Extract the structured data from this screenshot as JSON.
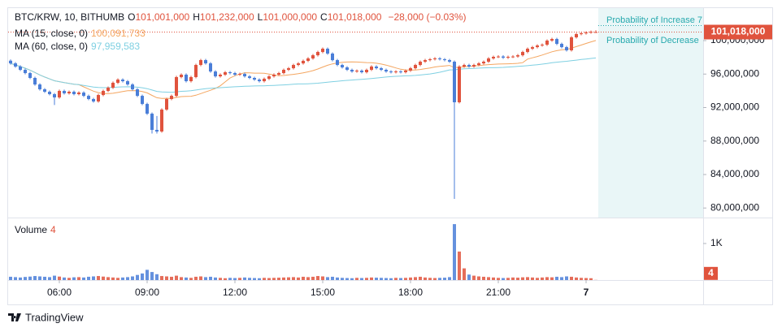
{
  "chart_data": {
    "type": "candlestick",
    "symbol": "BTC/KRW, 10, BITHUMB",
    "ohlc_legend": [
      {
        "key": "O",
        "label": "101,001,000"
      },
      {
        "key": "H",
        "label": "101,232,000"
      },
      {
        "key": "L",
        "label": "101,000,000"
      },
      {
        "key": "C",
        "label": "101,018,000"
      }
    ],
    "change_label": "−28,000 (−0.03%)",
    "up_color": "#e0533d",
    "down_color": "#4a7ed8",
    "open": [
      97600000,
      97280000,
      96900000,
      96510000,
      96120000,
      95540000,
      94760000,
      94180000,
      93890000,
      93600000,
      93210000,
      93990000,
      93700000,
      93890000,
      93600000,
      93790000,
      93400000,
      93020000,
      92730000,
      93500000,
      93990000,
      94370000,
      94960000,
      95340000,
      95150000,
      94760000,
      94180000,
      93400000,
      92430000,
      91270000,
      89330000,
      89140000,
      91760000,
      93020000,
      93400000,
      95640000,
      95930000,
      95150000,
      95640000,
      97090000,
      97670000,
      97280000,
      96310000,
      95730000,
      95930000,
      96220000,
      96120000,
      95930000,
      96020000,
      95730000,
      95540000,
      95340000,
      95150000,
      95440000,
      95730000,
      95930000,
      96120000,
      96510000,
      96700000,
      97090000,
      97280000,
      97580000,
      97870000,
      98250000,
      98640000,
      99030000,
      98450000,
      97670000,
      97090000,
      96800000,
      96510000,
      96310000,
      96410000,
      96220000,
      96510000,
      96900000,
      96700000,
      96510000,
      96310000,
      96220000,
      96310000,
      96220000,
      96410000,
      96700000,
      97090000,
      97480000,
      97670000,
      97770000,
      97870000,
      97770000,
      97670000,
      97480000,
      92630000,
      96900000,
      97090000,
      96900000,
      97090000,
      97280000,
      97480000,
      97870000,
      98060000,
      98100000,
      97960000,
      98060000,
      98100000,
      98250000,
      98640000,
      99030000,
      99220000,
      99420000,
      99510000,
      100000000,
      100190000,
      99610000,
      99220000,
      98840000,
      100390000,
      100780000,
      100870000,
      100970000,
      101001000
    ],
    "high": [
      97750000,
      97430000,
      97050000,
      96660000,
      96270000,
      95690000,
      94910000,
      94330000,
      94040000,
      93750000,
      94140000,
      94140000,
      94040000,
      94040000,
      93940000,
      93940000,
      93550000,
      93170000,
      93650000,
      94140000,
      94520000,
      95110000,
      95490000,
      95490000,
      95300000,
      94910000,
      94330000,
      93550000,
      92580000,
      91420000,
      91000000,
      91910000,
      93170000,
      93550000,
      95790000,
      96080000,
      96080000,
      95790000,
      97240000,
      97820000,
      97820000,
      97430000,
      96460000,
      96080000,
      96370000,
      96370000,
      96270000,
      96170000,
      96170000,
      95880000,
      95690000,
      95490000,
      95590000,
      95880000,
      96080000,
      96270000,
      96660000,
      96850000,
      97240000,
      97430000,
      97730000,
      98020000,
      98400000,
      98790000,
      99180000,
      99180000,
      98600000,
      97820000,
      97240000,
      96950000,
      96660000,
      96560000,
      96560000,
      96660000,
      97050000,
      97050000,
      96850000,
      96660000,
      96460000,
      96460000,
      96460000,
      96560000,
      96850000,
      97240000,
      97630000,
      97820000,
      97920000,
      98020000,
      98020000,
      97920000,
      97820000,
      97630000,
      97050000,
      97240000,
      97240000,
      97240000,
      97430000,
      97630000,
      98020000,
      98210000,
      98250000,
      98250000,
      98210000,
      98250000,
      98400000,
      98790000,
      99180000,
      99370000,
      99570000,
      99660000,
      100150000,
      100340000,
      100340000,
      99760000,
      99370000,
      100540000,
      100930000,
      101020000,
      101120000,
      101200000,
      101232000
    ],
    "low": [
      97130000,
      96750000,
      96360000,
      95970000,
      95390000,
      94610000,
      94030000,
      93740000,
      93450000,
      92300000,
      93060000,
      93550000,
      93550000,
      93450000,
      93450000,
      93250000,
      92870000,
      92580000,
      92580000,
      93350000,
      93840000,
      94220000,
      94810000,
      95000000,
      94610000,
      94030000,
      93250000,
      92280000,
      91120000,
      88900000,
      88900000,
      88990000,
      91610000,
      92870000,
      93250000,
      95490000,
      95000000,
      95000000,
      95490000,
      96940000,
      97130000,
      96160000,
      95580000,
      95580000,
      95780000,
      95970000,
      95780000,
      95780000,
      95580000,
      95390000,
      95190000,
      95000000,
      95000000,
      95290000,
      95580000,
      95780000,
      95970000,
      96360000,
      96550000,
      96940000,
      97130000,
      97430000,
      97720000,
      98100000,
      98490000,
      98300000,
      97520000,
      96940000,
      96650000,
      96360000,
      96160000,
      96160000,
      96070000,
      96070000,
      96360000,
      96550000,
      96360000,
      96160000,
      96070000,
      96070000,
      96070000,
      96070000,
      96260000,
      96550000,
      96940000,
      97330000,
      97520000,
      97620000,
      97620000,
      97520000,
      97330000,
      81090000,
      92480000,
      96750000,
      96750000,
      96750000,
      96940000,
      97130000,
      97330000,
      97720000,
      97910000,
      97810000,
      97810000,
      97910000,
      97950000,
      98100000,
      98490000,
      98880000,
      99070000,
      99270000,
      99360000,
      99850000,
      99460000,
      99070000,
      98690000,
      98690000,
      100240000,
      100630000,
      100720000,
      100820000,
      101000000
    ],
    "close": [
      97280000,
      96900000,
      96510000,
      96120000,
      95540000,
      94760000,
      94180000,
      93890000,
      93600000,
      93210000,
      93990000,
      93700000,
      93890000,
      93600000,
      93790000,
      93400000,
      93020000,
      92730000,
      93500000,
      93990000,
      94370000,
      94960000,
      95340000,
      95150000,
      94760000,
      94180000,
      93400000,
      92430000,
      91270000,
      89330000,
      89140000,
      91760000,
      93020000,
      93400000,
      95640000,
      95930000,
      95150000,
      95640000,
      97090000,
      97670000,
      97280000,
      96310000,
      95730000,
      95930000,
      96220000,
      96120000,
      95930000,
      96020000,
      95730000,
      95540000,
      95340000,
      95150000,
      95440000,
      95730000,
      95930000,
      96120000,
      96510000,
      96700000,
      97090000,
      97280000,
      97580000,
      97870000,
      98250000,
      98640000,
      99030000,
      98450000,
      97670000,
      97090000,
      96800000,
      96510000,
      96310000,
      96410000,
      96220000,
      96510000,
      96900000,
      96700000,
      96510000,
      96310000,
      96220000,
      96310000,
      96220000,
      96410000,
      96700000,
      97090000,
      97480000,
      97670000,
      97770000,
      97870000,
      97770000,
      97670000,
      97480000,
      92630000,
      96900000,
      97090000,
      96900000,
      97090000,
      97280000,
      97480000,
      97870000,
      98060000,
      98100000,
      97960000,
      98060000,
      98100000,
      98250000,
      98640000,
      99030000,
      99220000,
      99420000,
      99510000,
      100000000,
      100190000,
      99610000,
      99220000,
      98840000,
      100390000,
      100780000,
      100870000,
      100970000,
      101046000,
      101018000
    ],
    "xlim": [
      -0.5,
      142
    ],
    "xticks": [
      {
        "value": 10,
        "label": "06:00"
      },
      {
        "value": 28,
        "label": "09:00"
      },
      {
        "value": 46,
        "label": "12:00"
      },
      {
        "value": 64,
        "label": "15:00"
      },
      {
        "value": 82,
        "label": "18:00"
      },
      {
        "value": 100,
        "label": "21:00"
      },
      {
        "value": 118,
        "label": "7"
      }
    ],
    "ylim": [
      78860000,
      103880000
    ],
    "yticks": [
      {
        "value": 100000000,
        "label": "100,000,000"
      },
      {
        "value": 96000000,
        "label": "96,000,000"
      },
      {
        "value": 92000000,
        "label": "92,000,000"
      },
      {
        "value": 88000000,
        "label": "88,000,000"
      },
      {
        "value": 84000000,
        "label": "84,000,000"
      },
      {
        "value": 80000000,
        "label": "80,000,000"
      }
    ],
    "last_price_label": "101,018,000",
    "indicators": [
      {
        "name": "MA (15, close, 0)",
        "period": 15,
        "color": "#f4a660",
        "value_label": "100,091,733"
      },
      {
        "name": "MA (60, close, 0)",
        "period": 60,
        "color": "#7fd0e2",
        "value_label": "97,959,583"
      }
    ],
    "volume": {
      "title": "Volume",
      "value_label": "4",
      "values": [
        90,
        80,
        70,
        85,
        95,
        110,
        100,
        90,
        80,
        120,
        95,
        70,
        60,
        75,
        80,
        70,
        90,
        100,
        110,
        95,
        80,
        70,
        60,
        70,
        80,
        100,
        140,
        180,
        280,
        220,
        160,
        110,
        100,
        90,
        120,
        80,
        70,
        60,
        90,
        100,
        80,
        90,
        70,
        60,
        50,
        60,
        55,
        60,
        70,
        60,
        55,
        50,
        60,
        55,
        60,
        65,
        70,
        75,
        80,
        70,
        90,
        80,
        90,
        110,
        100,
        80,
        90,
        70,
        60,
        55,
        50,
        60,
        55,
        60,
        70,
        65,
        60,
        55,
        50,
        60,
        55,
        60,
        70,
        80,
        90,
        70,
        60,
        55,
        60,
        65,
        80,
        1530,
        780,
        320,
        150,
        120,
        100,
        90,
        80,
        70,
        60,
        55,
        60,
        70,
        65,
        75,
        80,
        70,
        60,
        70,
        80,
        75,
        90,
        80,
        100,
        90,
        70,
        60,
        55,
        50,
        4
      ],
      "ylim": [
        0,
        1710
      ],
      "yticks": [
        {
          "value": 1000,
          "label": "1K"
        }
      ]
    },
    "forecast": {
      "increase_label": "Probability of Increase 7",
      "decrease_label": "Probability of Decrease",
      "color": "#27a9ae"
    }
  },
  "branding": "TradingView"
}
